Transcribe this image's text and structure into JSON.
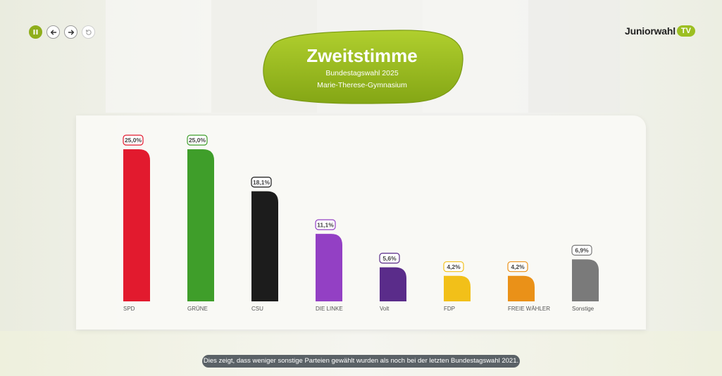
{
  "header": {
    "title": "Zweitstimme",
    "subtitle": "Bundestagswahl 2025",
    "school": "Marie-Therese-Gymnasium"
  },
  "logo": {
    "text": "Juniorwahl",
    "badge": "TV"
  },
  "controls": [
    {
      "icon": "pause-icon",
      "state": "active"
    },
    {
      "icon": "arrow-left-icon",
      "state": "enabled"
    },
    {
      "icon": "arrow-right-icon",
      "state": "enabled"
    },
    {
      "icon": "replay-icon",
      "state": "disabled"
    }
  ],
  "caption": "Dies zeigt, dass weniger sonstige Parteien gewählt wurden als noch bei der letzten Bundestagswahl 2021.",
  "chart_data": {
    "type": "bar",
    "categories": [
      "SPD",
      "GRÜNE",
      "CSU",
      "DIE LINKE",
      "Volt",
      "FDP",
      "FREIE WÄHLER",
      "Sonstige"
    ],
    "values": [
      25.0,
      25.0,
      18.1,
      11.1,
      5.6,
      4.2,
      4.2,
      6.9
    ],
    "value_labels": [
      "25,0%",
      "25,0%",
      "18,1%",
      "11,1%",
      "5,6%",
      "4,2%",
      "4,2%",
      "6,9%"
    ],
    "colors": [
      "#e21a2e",
      "#3f9e2a",
      "#1c1c1c",
      "#9340c4",
      "#5a2c8a",
      "#f2c019",
      "#ea9118",
      "#7a7a7a"
    ],
    "ylim": [
      0,
      25
    ],
    "grid": false,
    "legend": "none"
  }
}
